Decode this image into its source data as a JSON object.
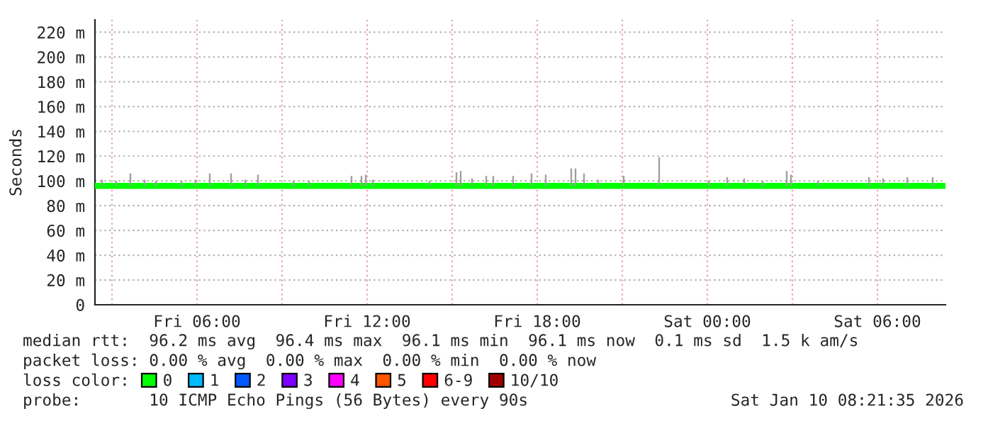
{
  "chart_data": {
    "type": "line",
    "ylabel": "Seconds",
    "legend_title": "loss color:",
    "legend": "bottom",
    "xlim": [
      "2026-01-09T02:24",
      "2026-01-10T08:24"
    ],
    "xticks": [
      {
        "value": "2026-01-09T03:00",
        "label": null
      },
      {
        "value": "2026-01-09T06:00",
        "label": "Fri 06:00"
      },
      {
        "value": "2026-01-09T09:00",
        "label": null
      },
      {
        "value": "2026-01-09T12:00",
        "label": "Fri 12:00"
      },
      {
        "value": "2026-01-09T15:00",
        "label": null
      },
      {
        "value": "2026-01-09T18:00",
        "label": "Fri 18:00"
      },
      {
        "value": "2026-01-09T21:00",
        "label": null
      },
      {
        "value": "2026-01-10T00:00",
        "label": "Sat 00:00"
      },
      {
        "value": "2026-01-10T03:00",
        "label": null
      },
      {
        "value": "2026-01-10T06:00",
        "label": "Sat 06:00"
      }
    ],
    "ylim": [
      0,
      230
    ],
    "yticks": [
      {
        "value": 0,
        "label": "0"
      },
      {
        "value": 20,
        "label": "20 m"
      },
      {
        "value": 40,
        "label": "40 m"
      },
      {
        "value": 60,
        "label": "60 m"
      },
      {
        "value": 80,
        "label": "80 m"
      },
      {
        "value": 100,
        "label": "100 m"
      },
      {
        "value": 120,
        "label": "120 m"
      },
      {
        "value": 140,
        "label": "140 m"
      },
      {
        "value": 160,
        "label": "160 m"
      },
      {
        "value": 180,
        "label": "180 m"
      },
      {
        "value": 200,
        "label": "200 m"
      },
      {
        "value": 220,
        "label": "220 m"
      }
    ],
    "grid": true,
    "series": [
      {
        "type": "bar",
        "color": "#a0a0a0",
        "x": [
          "2026-01-09T02:39",
          "2026-01-09T03:09",
          "2026-01-09T03:39",
          "2026-01-09T04:09",
          "2026-01-09T04:33",
          "2026-01-09T05:27",
          "2026-01-09T05:57",
          "2026-01-09T06:27",
          "2026-01-09T07:12",
          "2026-01-09T07:42",
          "2026-01-09T08:09",
          "2026-01-09T09:24",
          "2026-01-09T09:57",
          "2026-01-09T11:27",
          "2026-01-09T11:48",
          "2026-01-09T11:57",
          "2026-01-09T12:12",
          "2026-01-09T14:12",
          "2026-01-09T15:09",
          "2026-01-09T15:18",
          "2026-01-09T15:42",
          "2026-01-09T16:12",
          "2026-01-09T16:27",
          "2026-01-09T17:09",
          "2026-01-09T17:48",
          "2026-01-09T18:18",
          "2026-01-09T19:12",
          "2026-01-09T19:21",
          "2026-01-09T19:39",
          "2026-01-09T20:09",
          "2026-01-09T21:03",
          "2026-01-09T22:18",
          "2026-01-10T00:03",
          "2026-01-10T00:42",
          "2026-01-10T01:18",
          "2026-01-10T01:57",
          "2026-01-10T02:48",
          "2026-01-10T02:57",
          "2026-01-10T03:54",
          "2026-01-10T05:42",
          "2026-01-10T06:12",
          "2026-01-10T07:03",
          "2026-01-10T07:57"
        ],
        "base": [
          96,
          96,
          96,
          96,
          96,
          96,
          96,
          96,
          96,
          96,
          96,
          96,
          96,
          96,
          96,
          96,
          96,
          96,
          96,
          96,
          96,
          96,
          96,
          96,
          96,
          96,
          96,
          96,
          96,
          96,
          96,
          96,
          96,
          96,
          96,
          96,
          96,
          96,
          96,
          96,
          96,
          96,
          96
        ],
        "values": [
          5,
          4,
          10,
          5,
          4,
          4,
          5,
          10,
          10,
          5,
          9,
          4,
          4,
          8,
          8,
          9,
          5,
          4,
          11,
          12,
          6,
          8,
          8,
          8,
          10,
          9,
          14,
          14,
          10,
          5,
          8,
          23,
          4,
          7,
          6,
          4,
          12,
          9,
          4,
          7,
          6,
          7,
          7
        ]
      },
      {
        "name": "0",
        "color": "#00ff00",
        "x": [
          "2026-01-09T02:24",
          "2026-01-10T08:24"
        ],
        "values": [
          96,
          96
        ]
      },
      {
        "name": "1",
        "color": "#00bbff"
      },
      {
        "name": "2",
        "color": "#0059ff"
      },
      {
        "name": "3",
        "color": "#7e00ff"
      },
      {
        "name": "4",
        "color": "#ff00ff"
      },
      {
        "name": "5",
        "color": "#ff5500"
      },
      {
        "name": "6-9",
        "color": "#ff0000"
      },
      {
        "name": "10/10",
        "color": "#a10000"
      }
    ],
    "annotations": [
      "median rtt:  96.2 ms avg  96.4 ms max  96.1 ms min  96.1 ms now  0.1 ms sd  1.5 k am/s",
      "packet loss: 0.00 % avg  0.00 % max  0.00 % min  0.00 % now",
      "probe:       10 ICMP Echo Pings (56 Bytes) every 90s",
      "Sat Jan 10 08:21:35 2026"
    ]
  }
}
